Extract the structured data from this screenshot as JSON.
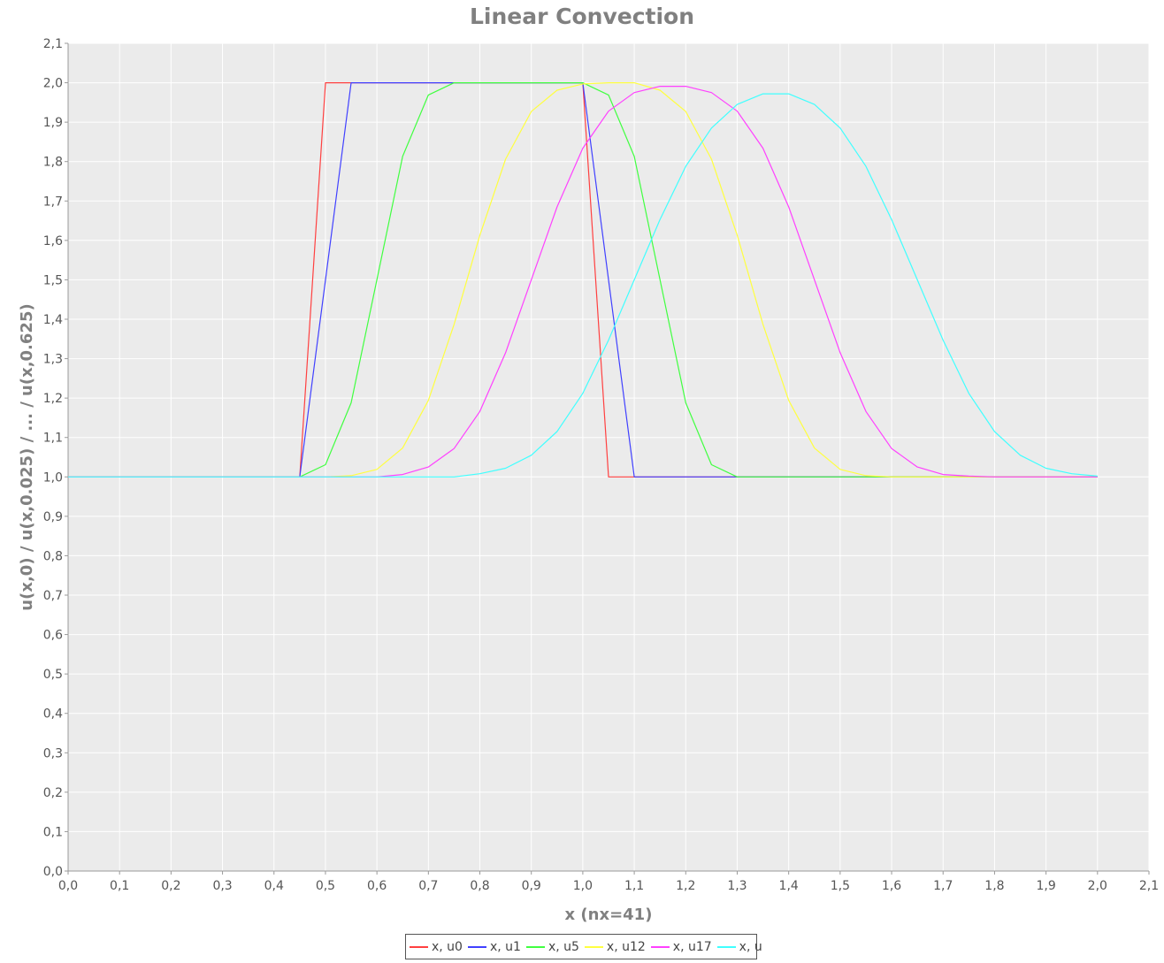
{
  "chart_data": {
    "type": "line",
    "title": "Linear Convection",
    "xlabel": "x (nx=41)",
    "ylabel": "u(x,0) / u(x,0.025) / ... / u(x,0.625)",
    "xlim": [
      0,
      2.1
    ],
    "ylim": [
      0,
      2.1
    ],
    "xticks": [
      "0,0",
      "0,1",
      "0,2",
      "0,3",
      "0,4",
      "0,5",
      "0,6",
      "0,7",
      "0,8",
      "0,9",
      "1,0",
      "1,1",
      "1,2",
      "1,3",
      "1,4",
      "1,5",
      "1,6",
      "1,7",
      "1,8",
      "1,9",
      "2,0",
      "2,1"
    ],
    "yticks": [
      "0,0",
      "0,1",
      "0,2",
      "0,3",
      "0,4",
      "0,5",
      "0,6",
      "0,7",
      "0,8",
      "0,9",
      "1,0",
      "1,1",
      "1,2",
      "1,3",
      "1,4",
      "1,5",
      "1,6",
      "1,7",
      "1,8",
      "1,9",
      "2,0",
      "2,1"
    ],
    "grid": true,
    "legend_position": "bottom-center",
    "plot_background": "#ebebeb",
    "x": [
      0.0,
      0.05,
      0.1,
      0.15,
      0.2,
      0.25,
      0.3,
      0.35,
      0.4,
      0.45,
      0.5,
      0.55,
      0.6,
      0.65,
      0.7,
      0.75,
      0.8,
      0.85,
      0.9,
      0.95,
      1.0,
      1.05,
      1.1,
      1.15,
      1.2,
      1.25,
      1.3,
      1.35,
      1.4,
      1.45,
      1.5,
      1.55,
      1.6,
      1.65,
      1.7,
      1.75,
      1.8,
      1.85,
      1.9,
      1.95,
      2.0
    ],
    "series": [
      {
        "name": "x, u0",
        "color": "#ff4040",
        "values": [
          1,
          1,
          1,
          1,
          1,
          1,
          1,
          1,
          1,
          1,
          2,
          2,
          2,
          2,
          2,
          2,
          2,
          2,
          2,
          2,
          2,
          1,
          1,
          1,
          1,
          1,
          1,
          1,
          1,
          1,
          1,
          1,
          1,
          1,
          1,
          1,
          1,
          1,
          1,
          1,
          1
        ]
      },
      {
        "name": "x, u1",
        "color": "#4040ff",
        "values": [
          1,
          1,
          1,
          1,
          1,
          1,
          1,
          1,
          1,
          1,
          1.5,
          2,
          2,
          2,
          2,
          2,
          2,
          2,
          2,
          2,
          2,
          1.5,
          1,
          1,
          1,
          1,
          1,
          1,
          1,
          1,
          1,
          1,
          1,
          1,
          1,
          1,
          1,
          1,
          1,
          1,
          1
        ]
      },
      {
        "name": "x, u5",
        "color": "#40ff40",
        "values": [
          1,
          1,
          1,
          1,
          1,
          1,
          1,
          1,
          1,
          1,
          1.031,
          1.188,
          1.5,
          1.813,
          1.969,
          2,
          2,
          2,
          2,
          2,
          2,
          1.969,
          1.813,
          1.5,
          1.188,
          1.031,
          1,
          1,
          1,
          1,
          1,
          1,
          1,
          1,
          1,
          1,
          1,
          1,
          1,
          1,
          1
        ]
      },
      {
        "name": "x, u12",
        "color": "#ffff40",
        "values": [
          1,
          1,
          1,
          1,
          1,
          1,
          1,
          1,
          1,
          1,
          1,
          1.003,
          1.019,
          1.073,
          1.194,
          1.387,
          1.613,
          1.806,
          1.927,
          1.981,
          1.997,
          2,
          2,
          1.981,
          1.927,
          1.806,
          1.613,
          1.387,
          1.194,
          1.073,
          1.019,
          1.003,
          1,
          1,
          1,
          1,
          1,
          1,
          1,
          1,
          1
        ]
      },
      {
        "name": "x, u17",
        "color": "#ff40ff",
        "values": [
          1,
          1,
          1,
          1,
          1,
          1,
          1,
          1,
          1,
          1,
          1,
          1,
          1,
          1.006,
          1.025,
          1.072,
          1.166,
          1.315,
          1.5,
          1.685,
          1.834,
          1.928,
          1.975,
          1.991,
          1.991,
          1.975,
          1.928,
          1.834,
          1.685,
          1.5,
          1.315,
          1.166,
          1.072,
          1.025,
          1.006,
          1.002,
          1,
          1,
          1,
          1,
          1
        ]
      },
      {
        "name": "x, u",
        "color": "#40ffff",
        "values": [
          1,
          1,
          1,
          1,
          1,
          1,
          1,
          1,
          1,
          1,
          1,
          1,
          1,
          1,
          1,
          1,
          1.008,
          1.022,
          1.055,
          1.115,
          1.212,
          1.347,
          1.5,
          1.653,
          1.788,
          1.885,
          1.945,
          1.972,
          1.972,
          1.945,
          1.885,
          1.788,
          1.653,
          1.5,
          1.347,
          1.212,
          1.115,
          1.055,
          1.022,
          1.008,
          1.002
        ]
      }
    ]
  }
}
